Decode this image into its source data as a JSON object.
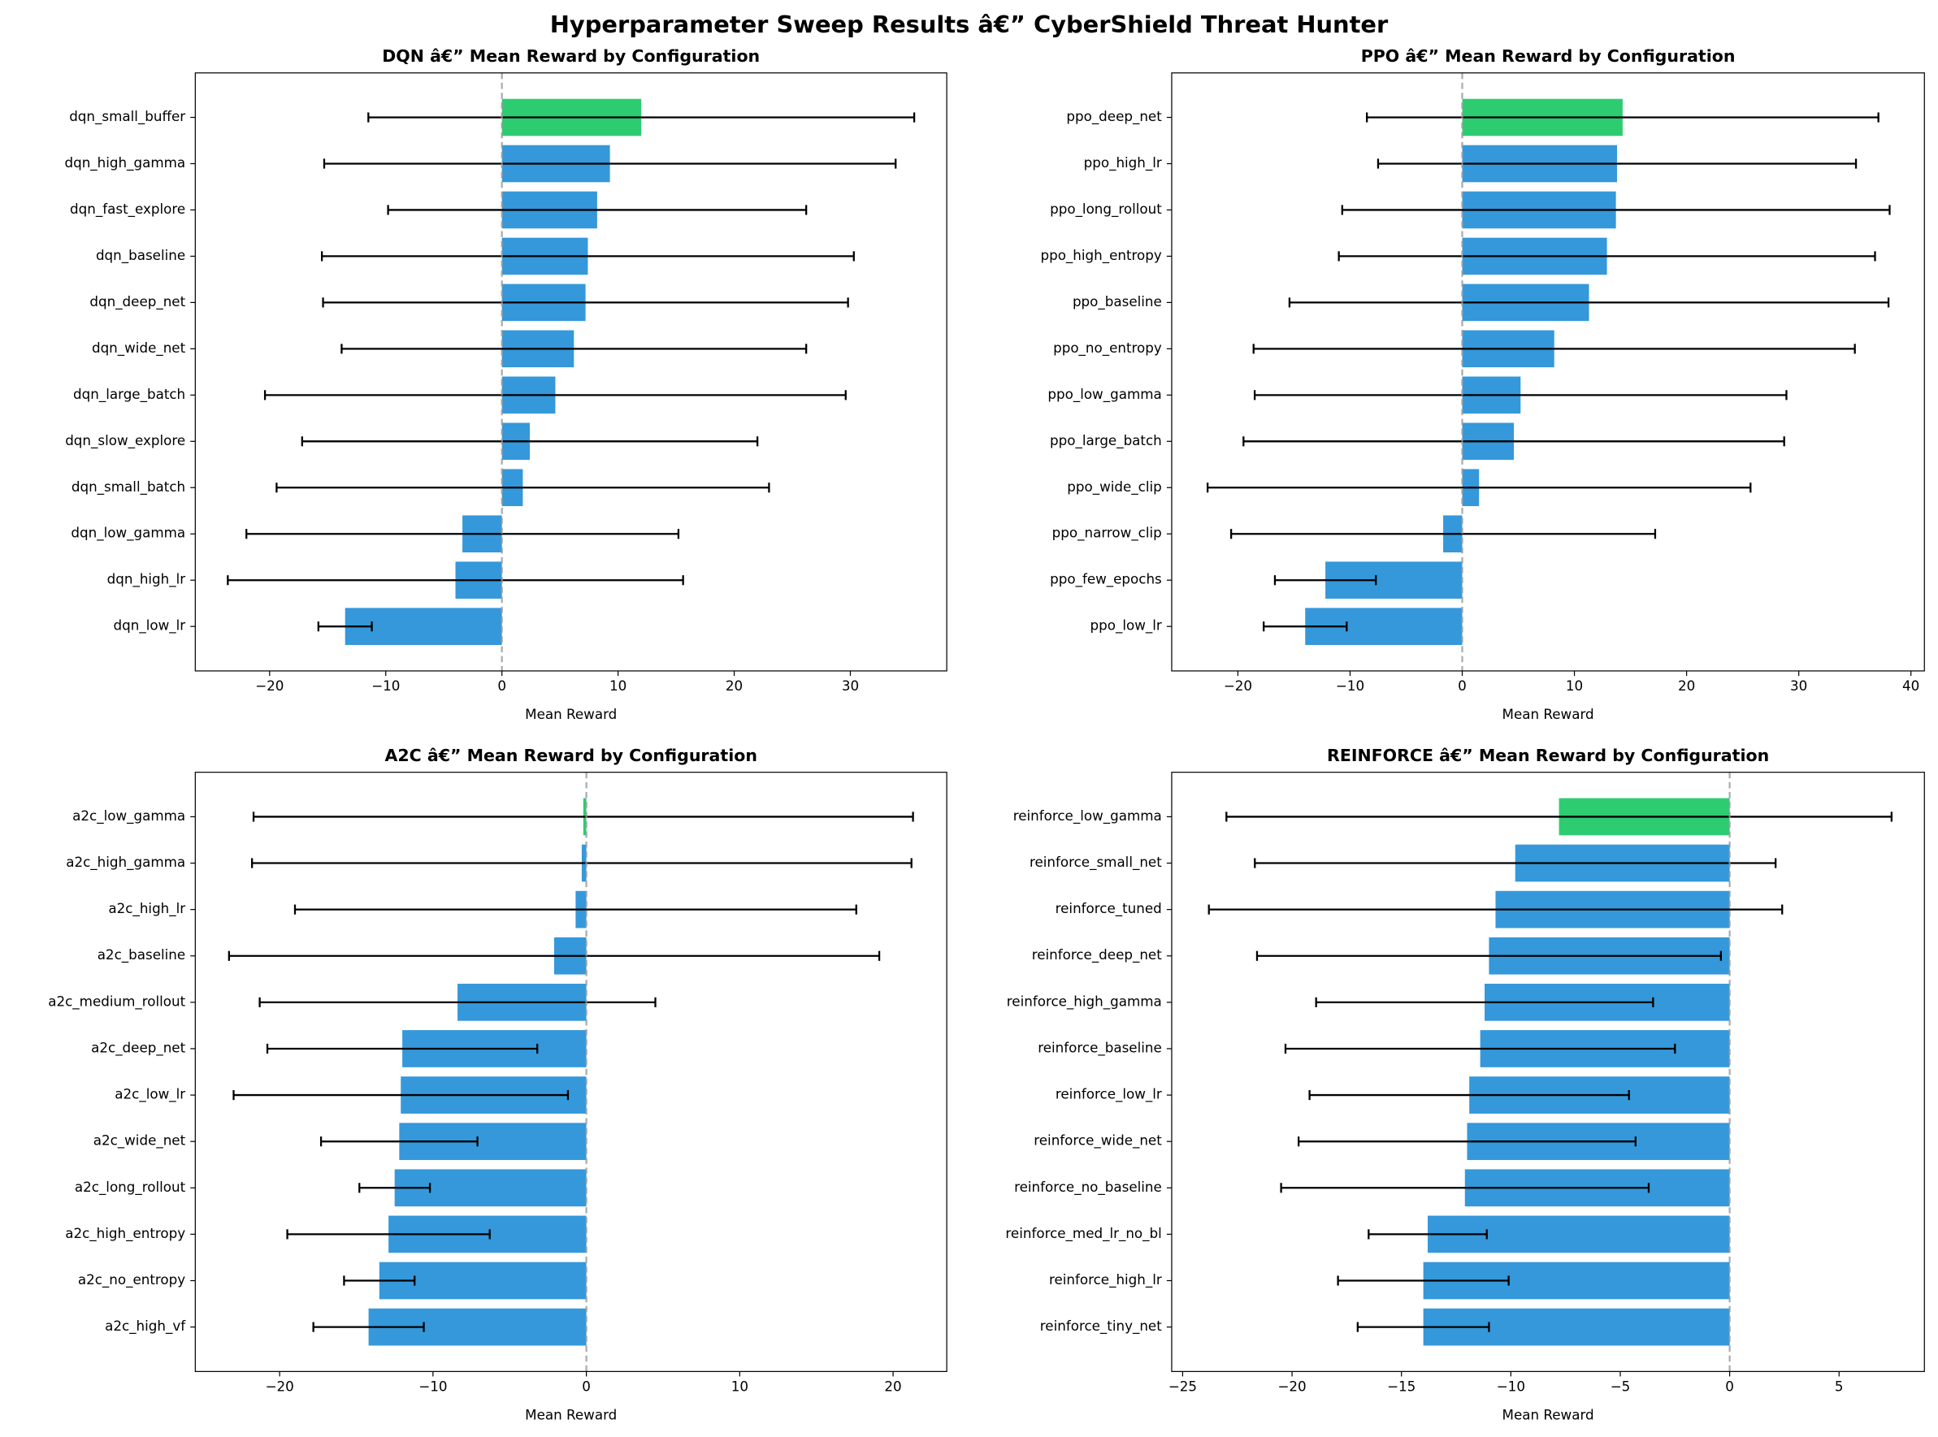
{
  "title": "Hyperparameter Sweep Results â€” CyberShield Threat Hunter",
  "chart_data": [
    {
      "type": "bar",
      "title": "DQN â€” Mean Reward by Configuration",
      "xlabel": "Mean Reward",
      "categories": [
        "dqn_small_buffer",
        "dqn_high_gamma",
        "dqn_fast_explore",
        "dqn_baseline",
        "dqn_deep_net",
        "dqn_wide_net",
        "dqn_large_batch",
        "dqn_slow_explore",
        "dqn_small_batch",
        "dqn_low_gamma",
        "dqn_high_lr",
        "dqn_low_lr"
      ],
      "values": [
        12.0,
        9.3,
        8.2,
        7.4,
        7.2,
        6.2,
        4.6,
        2.4,
        1.8,
        -3.4,
        -4.0,
        -13.5
      ],
      "errors": [
        23.5,
        24.6,
        18.0,
        22.9,
        22.6,
        20.0,
        25.0,
        19.6,
        21.2,
        18.6,
        19.6,
        2.3
      ],
      "colors": [
        "#2ecc71",
        "#3498db",
        "#3498db",
        "#3498db",
        "#3498db",
        "#3498db",
        "#3498db",
        "#3498db",
        "#3498db",
        "#3498db",
        "#3498db",
        "#3498db"
      ],
      "xlim": [
        -26.4,
        38.3
      ],
      "xticks": [
        {
          "value": -20,
          "label": "−20"
        },
        {
          "value": -10,
          "label": "−10"
        },
        0,
        10,
        20,
        30
      ]
    },
    {
      "type": "bar",
      "title": "PPO â€” Mean Reward by Configuration",
      "xlabel": "Mean Reward",
      "categories": [
        "ppo_deep_net",
        "ppo_high_lr",
        "ppo_long_rollout",
        "ppo_high_entropy",
        "ppo_baseline",
        "ppo_no_entropy",
        "ppo_low_gamma",
        "ppo_large_batch",
        "ppo_wide_clip",
        "ppo_narrow_clip",
        "ppo_few_epochs",
        "ppo_low_lr"
      ],
      "values": [
        14.3,
        13.8,
        13.7,
        12.9,
        11.3,
        8.2,
        5.2,
        4.6,
        1.5,
        -1.7,
        -12.2,
        -14.0
      ],
      "errors": [
        22.8,
        21.3,
        24.4,
        23.9,
        26.7,
        26.8,
        23.7,
        24.1,
        24.2,
        18.9,
        4.5,
        3.7
      ],
      "colors": [
        "#2ecc71",
        "#3498db",
        "#3498db",
        "#3498db",
        "#3498db",
        "#3498db",
        "#3498db",
        "#3498db",
        "#3498db",
        "#3498db",
        "#3498db",
        "#3498db"
      ],
      "xlim": [
        -25.9,
        41.2
      ],
      "xticks": [
        {
          "value": -20,
          "label": "−20"
        },
        {
          "value": -10,
          "label": "−10"
        },
        0,
        10,
        20,
        30,
        40
      ]
    },
    {
      "type": "bar",
      "title": "A2C â€” Mean Reward by Configuration",
      "xlabel": "Mean Reward",
      "categories": [
        "a2c_low_gamma",
        "a2c_high_gamma",
        "a2c_high_lr",
        "a2c_baseline",
        "a2c_medium_rollout",
        "a2c_deep_net",
        "a2c_low_lr",
        "a2c_wide_net",
        "a2c_long_rollout",
        "a2c_high_entropy",
        "a2c_no_entropy",
        "a2c_high_vf"
      ],
      "values": [
        -0.2,
        -0.3,
        -0.7,
        -2.1,
        -8.4,
        -12.0,
        -12.1,
        -12.2,
        -12.5,
        -12.9,
        -13.5,
        -14.2
      ],
      "errors": [
        21.5,
        21.5,
        18.3,
        21.2,
        12.9,
        8.8,
        10.9,
        5.1,
        2.3,
        6.6,
        2.3,
        3.6
      ],
      "colors": [
        "#2ecc71",
        "#3498db",
        "#3498db",
        "#3498db",
        "#3498db",
        "#3498db",
        "#3498db",
        "#3498db",
        "#3498db",
        "#3498db",
        "#3498db",
        "#3498db"
      ],
      "xlim": [
        -25.5,
        23.5
      ],
      "xticks": [
        {
          "value": -20,
          "label": "−20"
        },
        {
          "value": -10,
          "label": "−10"
        },
        0,
        10,
        20
      ]
    },
    {
      "type": "bar",
      "title": "REINFORCE â€” Mean Reward by Configuration",
      "xlabel": "Mean Reward",
      "categories": [
        "reinforce_low_gamma",
        "reinforce_small_net",
        "reinforce_tuned",
        "reinforce_deep_net",
        "reinforce_high_gamma",
        "reinforce_baseline",
        "reinforce_low_lr",
        "reinforce_wide_net",
        "reinforce_no_baseline",
        "reinforce_med_lr_no_bl",
        "reinforce_high_lr",
        "reinforce_tiny_net"
      ],
      "values": [
        -7.8,
        -9.8,
        -10.7,
        -11.0,
        -11.2,
        -11.4,
        -11.9,
        -12.0,
        -12.1,
        -13.8,
        -14.0,
        -14.0
      ],
      "errors": [
        15.2,
        11.9,
        13.1,
        10.6,
        7.7,
        8.9,
        7.3,
        7.7,
        8.4,
        2.7,
        3.9,
        3.0
      ],
      "colors": [
        "#2ecc71",
        "#3498db",
        "#3498db",
        "#3498db",
        "#3498db",
        "#3498db",
        "#3498db",
        "#3498db",
        "#3498db",
        "#3498db",
        "#3498db",
        "#3498db"
      ],
      "xlim": [
        -25.5,
        8.9
      ],
      "xticks": [
        {
          "value": -25,
          "label": "−25"
        },
        {
          "value": -20,
          "label": "−20"
        },
        {
          "value": -15,
          "label": "−15"
        },
        {
          "value": -10,
          "label": "−10"
        },
        {
          "value": -5,
          "label": "−5"
        },
        0,
        5
      ]
    }
  ]
}
